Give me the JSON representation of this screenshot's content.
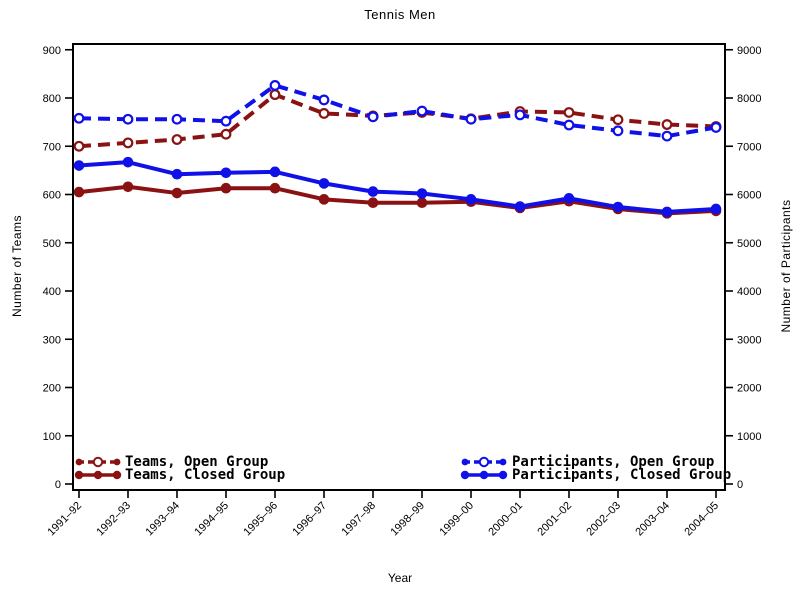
{
  "title": "Tennis Men",
  "axes": {
    "x": {
      "label": "Year"
    },
    "y_left": {
      "label": "Number of Teams",
      "min": 0,
      "max": 900,
      "step": 100
    },
    "y_right": {
      "label": "Number of Participants",
      "min": 0,
      "max": 9000,
      "step": 1000
    }
  },
  "legend": {
    "left": [
      {
        "label": "Teams, Open Group"
      },
      {
        "label": "Teams, Closed Group"
      }
    ],
    "right": [
      {
        "label": "Participants, Open Group"
      },
      {
        "label": "Participants, Closed Group"
      }
    ]
  },
  "colors": {
    "teams": "#8B1212",
    "participants": "#1010E8",
    "axis": "#000000",
    "background": "#FFFFFF"
  },
  "chart_data": {
    "type": "line",
    "title": "Tennis Men",
    "xlabel": "Year",
    "ylabel_left": "Number of Teams",
    "ylabel_right": "Number of Participants",
    "ylim_left": [
      0,
      900
    ],
    "ytick_step_left": 100,
    "ylim_right": [
      0,
      9000
    ],
    "ytick_step_right": 1000,
    "grid": false,
    "legend_position": "bottom-inside",
    "categories": [
      "1991–92",
      "1992–93",
      "1993–94",
      "1994–95",
      "1995–96",
      "1996–97",
      "1997–98",
      "1998–99",
      "1999–00",
      "2000–01",
      "2001–02",
      "2002–03",
      "2003–04",
      "2004–05"
    ],
    "series": [
      {
        "name": "Teams, Open Group",
        "axis": "left",
        "color": "#8B1212",
        "line": "dashed",
        "marker": "open",
        "values": [
          700,
          707,
          714,
          725,
          807,
          768,
          763,
          770,
          757,
          772,
          770,
          755,
          745,
          741
        ]
      },
      {
        "name": "Teams, Closed Group",
        "axis": "left",
        "color": "#8B1212",
        "line": "solid",
        "marker": "filled",
        "values": [
          605,
          616,
          603,
          613,
          613,
          590,
          583,
          583,
          585,
          572,
          586,
          570,
          561,
          566
        ]
      },
      {
        "name": "Participants, Open Group",
        "axis": "right",
        "color": "#1010E8",
        "line": "dashed",
        "marker": "open",
        "values": [
          7580,
          7560,
          7560,
          7520,
          8260,
          7960,
          7610,
          7730,
          7560,
          7650,
          7440,
          7320,
          7210,
          7390
        ]
      },
      {
        "name": "Participants, Closed Group",
        "axis": "right",
        "color": "#1010E8",
        "line": "solid",
        "marker": "filled",
        "values": [
          6600,
          6670,
          6420,
          6450,
          6470,
          6230,
          6060,
          6020,
          5900,
          5750,
          5920,
          5740,
          5640,
          5700
        ]
      }
    ]
  }
}
